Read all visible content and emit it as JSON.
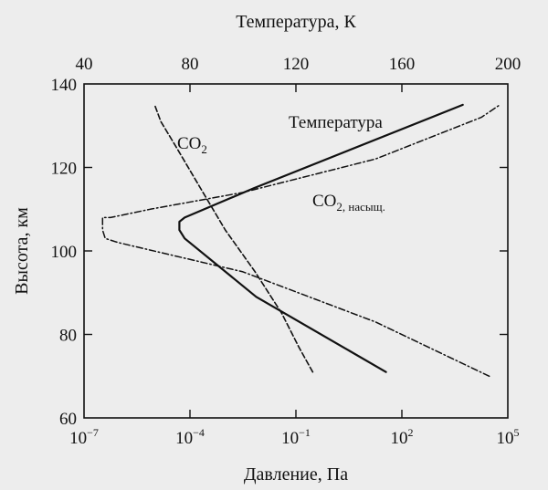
{
  "chart_data": {
    "type": "line",
    "title": "",
    "top_axis": {
      "label": "Температура, К",
      "ticks": [
        40,
        80,
        120,
        160,
        200
      ],
      "range": [
        40,
        200
      ]
    },
    "bottom_axis": {
      "label": "Давление, Па",
      "scale": "log",
      "range_exponent": [
        -7,
        5
      ],
      "ticks": [
        {
          "base": "10",
          "exp": "−7",
          "value_exponent": -7
        },
        {
          "base": "10",
          "exp": "−4",
          "value_exponent": -4
        },
        {
          "base": "10",
          "exp": "−1",
          "value_exponent": -1
        },
        {
          "base": "10",
          "exp": "2",
          "value_exponent": 2
        },
        {
          "base": "10",
          "exp": "5",
          "value_exponent": 5
        }
      ]
    },
    "y_axis": {
      "label": "Высота, км",
      "ticks": [
        60,
        80,
        100,
        120,
        140
      ],
      "range": [
        60,
        140
      ]
    },
    "grid": false,
    "series": [
      {
        "name": "Температура",
        "axis": "top",
        "style": "solid",
        "label": {
          "text": "Температура",
          "sub": ""
        },
        "points": [
          [
            154,
            71
          ],
          [
            105,
            89
          ],
          [
            78,
            103
          ],
          [
            76,
            105
          ],
          [
            76,
            107
          ],
          [
            78,
            108
          ],
          [
            104,
            115
          ],
          [
            183,
            135
          ]
        ]
      },
      {
        "name": "CO2",
        "axis": "bottom",
        "style": "dashed",
        "label": {
          "text": "CO",
          "sub": "2"
        },
        "points": [
          [
            0.3,
            71
          ],
          [
            0.12,
            77
          ],
          [
            0.04,
            85
          ],
          [
            0.007,
            95
          ],
          [
            0.001,
            105
          ],
          [
            0.0002,
            115
          ],
          [
            4e-05,
            125
          ],
          [
            1.5e-05,
            131
          ],
          [
            1e-05,
            135
          ]
        ]
      },
      {
        "name": "CO2, насыщ.",
        "axis": "top",
        "style": "dashdot",
        "label": {
          "text": "CO",
          "sub": "2, насыщ."
        },
        "points": [
          [
            193,
            70
          ],
          [
            150,
            83
          ],
          [
            100,
            95
          ],
          [
            53,
            102
          ],
          [
            48,
            103
          ],
          [
            47,
            105
          ],
          [
            47,
            108
          ],
          [
            50,
            108
          ],
          [
            65,
            110
          ],
          [
            100,
            114
          ],
          [
            150,
            122
          ],
          [
            190,
            132
          ],
          [
            197,
            135
          ]
        ]
      }
    ]
  }
}
